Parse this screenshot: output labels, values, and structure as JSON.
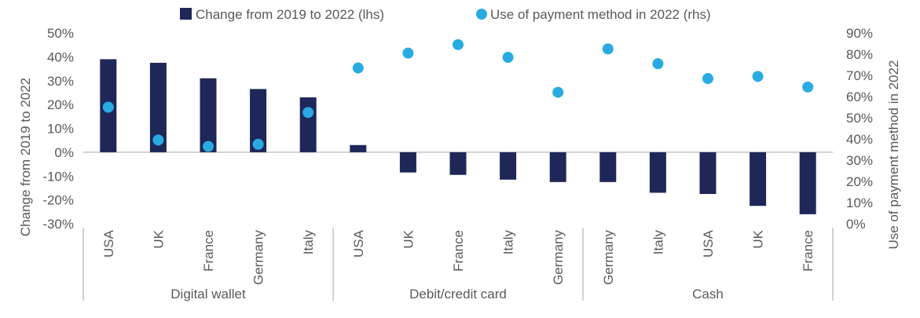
{
  "chart_data": {
    "type": "bar",
    "legend": {
      "placement": "top-center",
      "items": [
        {
          "label": "Change from 2019 to 2022 (lhs)",
          "marker": "square"
        },
        {
          "label": "Use of payment method in 2022 (rhs)",
          "marker": "circle"
        }
      ]
    },
    "y_left": {
      "label": "Change from 2019 to 2022",
      "ticks": [
        "50%",
        "40%",
        "30%",
        "20%",
        "10%",
        "0%",
        "-10%",
        "-20%",
        "-30%"
      ],
      "range": [
        -30,
        50
      ]
    },
    "y_right": {
      "label": "Use of payment method in 2022",
      "ticks": [
        "90%",
        "80%",
        "70%",
        "60%",
        "50%",
        "40%",
        "30%",
        "20%",
        "10%",
        "0%"
      ],
      "range": [
        0,
        90
      ]
    },
    "groups": [
      {
        "name": "Digital wallet",
        "categories": [
          "USA",
          "UK",
          "France",
          "Germany",
          "Italy"
        ]
      },
      {
        "name": "Debit/credit card",
        "categories": [
          "USA",
          "UK",
          "France",
          "Italy",
          "Germany"
        ]
      },
      {
        "name": "Cash",
        "categories": [
          "Germany",
          "Italy",
          "USA",
          "UK",
          "France"
        ]
      }
    ],
    "series": [
      {
        "name": "Change from 2019 to 2022 (lhs)",
        "type": "bar",
        "axis": "left",
        "values": [
          39,
          37.5,
          31,
          26.5,
          23,
          3,
          -8.5,
          -9.5,
          -11.5,
          -12.5,
          -12.5,
          -17,
          -17.5,
          -22.5,
          -26
        ]
      },
      {
        "name": "Use of payment method in 2022 (rhs)",
        "type": "scatter",
        "axis": "right",
        "values": [
          55,
          39.5,
          36.5,
          37.5,
          52.5,
          73.5,
          80.5,
          84.5,
          78.5,
          62,
          82.5,
          75.5,
          68.5,
          69.5,
          64.5
        ]
      }
    ],
    "colors": {
      "bars": "#1f2758",
      "dots": "#29abe2",
      "axis": "#a6a6a6",
      "text": "#595959"
    }
  }
}
